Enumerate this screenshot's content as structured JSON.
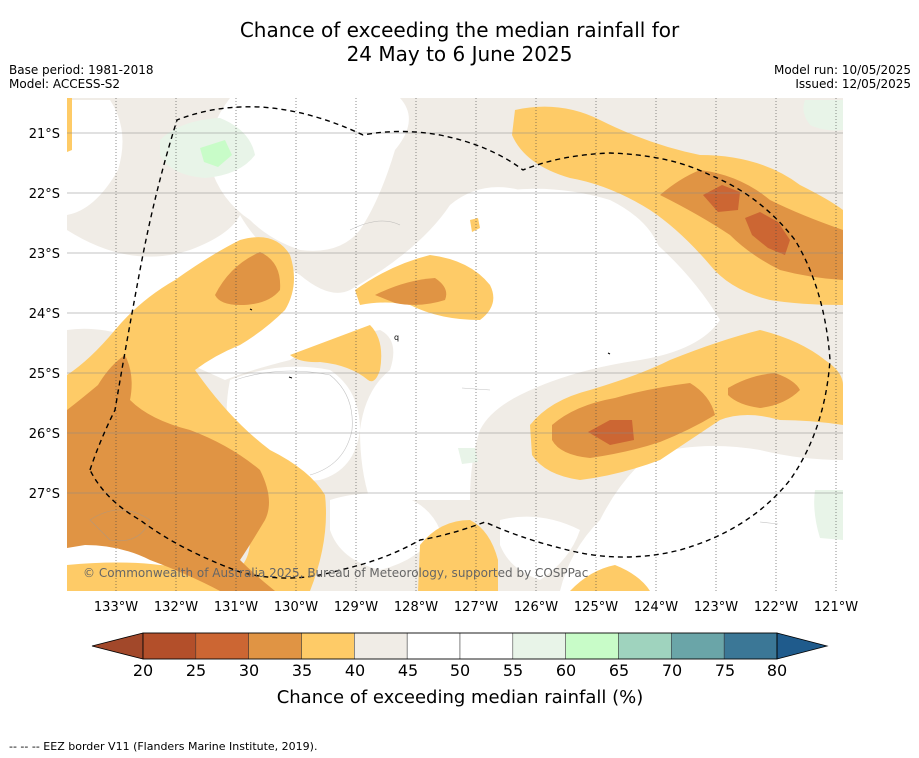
{
  "title": {
    "line1": "Chance of exceeding the median rainfall for",
    "line2": "24 May to 6 June 2025"
  },
  "meta": {
    "base_period": "Base period: 1981-2018",
    "model": "Model: ACCESS-S2",
    "model_run": "Model run: 10/05/2025",
    "issued": "Issued: 12/05/2025"
  },
  "map": {
    "lat_labels": [
      "21°S",
      "22°S",
      "23°S",
      "24°S",
      "25°S",
      "26°S",
      "27°S"
    ],
    "lon_labels": [
      "133°W",
      "132°W",
      "131°W",
      "130°W",
      "129°W",
      "128°W",
      "127°W",
      "126°W",
      "125°W",
      "124°W",
      "123°W",
      "122°W",
      "121°W"
    ],
    "copyright": "© Commonwealth of Australia 2025, Bureau of Meteorology, supported by COSPPac",
    "stray_label": "q"
  },
  "colorbar": {
    "labels": [
      "20",
      "25",
      "30",
      "35",
      "40",
      "45",
      "50",
      "55",
      "60",
      "65",
      "70",
      "75",
      "80"
    ],
    "colors": [
      "#a2482a",
      "#b34f2a",
      "#cc6633",
      "#e09444",
      "#fecb67",
      "#f0ece6",
      "#ffffff",
      "#ffffff",
      "#e8f4e8",
      "#c8fcc8",
      "#9fd3be",
      "#6aa5a8",
      "#3b7796",
      "#1f5b8c"
    ],
    "title": "Chance of exceeding median rainfall (%)"
  },
  "footer": "--  --  -- EEZ border V11 (Flanders Marine Institute, 2019)."
}
